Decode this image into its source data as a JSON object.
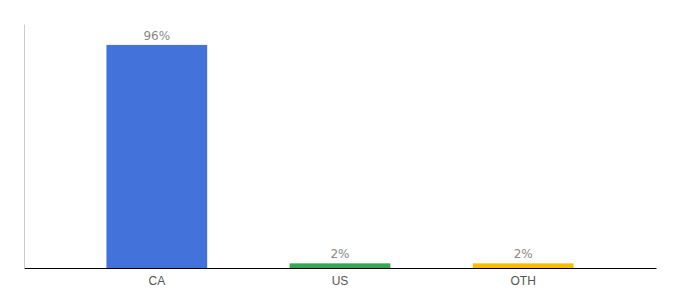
{
  "chart_data": {
    "type": "bar",
    "categories": [
      "CA",
      "US",
      "OTH"
    ],
    "values": [
      96,
      2,
      2
    ],
    "value_labels": [
      "96%",
      "2%",
      "2%"
    ],
    "colors": [
      "#4472db",
      "#34a853",
      "#fbbc04"
    ],
    "ylim": [
      0,
      105
    ],
    "data_labels": true,
    "tick_labels": "x"
  }
}
